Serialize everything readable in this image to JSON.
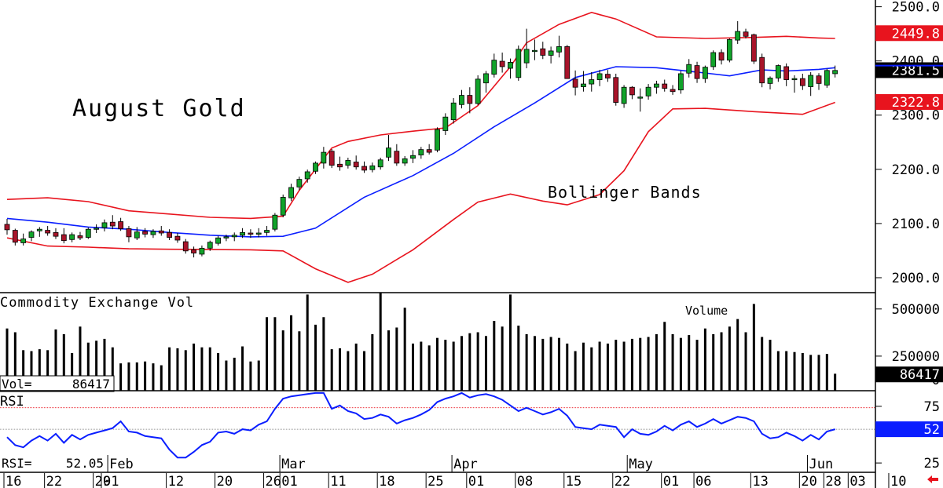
{
  "chart_data": {
    "type": "candlestick",
    "title": "August Gold",
    "annotation": "Bollinger Bands",
    "price_axis": {
      "ticks": [
        "2500.0",
        "2400.0",
        "2300.0",
        "2200.0",
        "2100.0",
        "2000.0"
      ],
      "tick_values": [
        2500,
        2400,
        2300,
        2200,
        2100,
        2000
      ],
      "range": [
        1971,
        2511
      ],
      "flags": [
        {
          "label": "2449.8",
          "value": 2449.8,
          "color": "#e8141e",
          "text_color": "#ffffff"
        },
        {
          "label": "2381.5",
          "value": 2381.5,
          "color": "#000000",
          "text_color": "#ffffff"
        },
        {
          "label": "2322.8",
          "value": 2322.8,
          "color": "#e8141e",
          "text_color": "#ffffff"
        }
      ]
    },
    "date_axis": {
      "day_labels": [
        "16",
        "22",
        "29",
        "01",
        "12",
        "20",
        "26",
        "01",
        "11",
        "18",
        "25",
        "01",
        "08",
        "15",
        "22",
        "01",
        "06",
        "13",
        "20",
        "28",
        "03",
        "10"
      ],
      "month_labels": [
        "Feb",
        "Mar",
        "Apr",
        "May",
        "Jun"
      ]
    },
    "candles": [
      [
        2097,
        2107,
        2078,
        2087
      ],
      [
        2086,
        2089,
        2058,
        2064
      ],
      [
        2063,
        2080,
        2058,
        2070
      ],
      [
        2073,
        2086,
        2066,
        2083
      ],
      [
        2085,
        2092,
        2074,
        2088
      ],
      [
        2086,
        2094,
        2076,
        2081
      ],
      [
        2082,
        2090,
        2070,
        2075
      ],
      [
        2078,
        2090,
        2062,
        2067
      ],
      [
        2069,
        2082,
        2064,
        2078
      ],
      [
        2076,
        2083,
        2068,
        2072
      ],
      [
        2073,
        2091,
        2070,
        2088
      ],
      [
        2089,
        2097,
        2081,
        2090
      ],
      [
        2091,
        2106,
        2084,
        2100
      ],
      [
        2101,
        2114,
        2088,
        2094
      ],
      [
        2102,
        2109,
        2085,
        2089
      ],
      [
        2089,
        2094,
        2064,
        2074
      ],
      [
        2072,
        2092,
        2068,
        2083
      ],
      [
        2084,
        2090,
        2073,
        2079
      ],
      [
        2078,
        2088,
        2072,
        2084
      ],
      [
        2085,
        2094,
        2076,
        2081
      ],
      [
        2082,
        2088,
        2068,
        2073
      ],
      [
        2075,
        2081,
        2063,
        2068
      ],
      [
        2065,
        2070,
        2043,
        2048
      ],
      [
        2050,
        2056,
        2036,
        2044
      ],
      [
        2042,
        2058,
        2038,
        2053
      ],
      [
        2053,
        2067,
        2048,
        2064
      ],
      [
        2062,
        2076,
        2058,
        2072
      ],
      [
        2072,
        2078,
        2066,
        2074
      ],
      [
        2074,
        2082,
        2066,
        2077
      ],
      [
        2077,
        2090,
        2072,
        2082
      ],
      [
        2081,
        2088,
        2072,
        2079
      ],
      [
        2079,
        2090,
        2073,
        2081
      ],
      [
        2082,
        2094,
        2076,
        2086
      ],
      [
        2088,
        2118,
        2084,
        2114
      ],
      [
        2114,
        2152,
        2110,
        2147
      ],
      [
        2146,
        2172,
        2140,
        2165
      ],
      [
        2166,
        2185,
        2160,
        2180
      ],
      [
        2181,
        2198,
        2174,
        2194
      ],
      [
        2195,
        2213,
        2190,
        2210
      ],
      [
        2210,
        2240,
        2200,
        2230
      ],
      [
        2232,
        2236,
        2201,
        2206
      ],
      [
        2208,
        2222,
        2196,
        2203
      ],
      [
        2206,
        2220,
        2200,
        2215
      ],
      [
        2212,
        2224,
        2198,
        2203
      ],
      [
        2204,
        2213,
        2192,
        2197
      ],
      [
        2198,
        2211,
        2193,
        2205
      ],
      [
        2203,
        2220,
        2198,
        2216
      ],
      [
        2221,
        2262,
        2214,
        2238
      ],
      [
        2232,
        2245,
        2205,
        2210
      ],
      [
        2210,
        2223,
        2205,
        2218
      ],
      [
        2219,
        2234,
        2210,
        2224
      ],
      [
        2225,
        2240,
        2218,
        2235
      ],
      [
        2235,
        2245,
        2226,
        2230
      ],
      [
        2234,
        2276,
        2230,
        2272
      ],
      [
        2270,
        2302,
        2262,
        2295
      ],
      [
        2290,
        2330,
        2283,
        2321
      ],
      [
        2318,
        2345,
        2311,
        2335
      ],
      [
        2335,
        2350,
        2302,
        2320
      ],
      [
        2320,
        2372,
        2317,
        2365
      ],
      [
        2358,
        2380,
        2340,
        2375
      ],
      [
        2374,
        2412,
        2368,
        2400
      ],
      [
        2398,
        2414,
        2377,
        2388
      ],
      [
        2385,
        2403,
        2366,
        2396
      ],
      [
        2368,
        2427,
        2362,
        2420
      ],
      [
        2395,
        2458,
        2385,
        2420
      ],
      [
        2418,
        2438,
        2400,
        2418
      ],
      [
        2421,
        2434,
        2402,
        2409
      ],
      [
        2409,
        2425,
        2394,
        2417
      ],
      [
        2415,
        2445,
        2405,
        2425
      ],
      [
        2425,
        2428,
        2366,
        2366
      ],
      [
        2365,
        2381,
        2335,
        2350
      ],
      [
        2351,
        2380,
        2342,
        2356
      ],
      [
        2356,
        2378,
        2342,
        2364
      ],
      [
        2364,
        2382,
        2352,
        2375
      ],
      [
        2374,
        2382,
        2360,
        2367
      ],
      [
        2368,
        2375,
        2316,
        2322
      ],
      [
        2320,
        2354,
        2312,
        2350
      ],
      [
        2350,
        2352,
        2328,
        2336
      ],
      [
        2330,
        2348,
        2305,
        2332
      ],
      [
        2334,
        2356,
        2327,
        2350
      ],
      [
        2350,
        2362,
        2338,
        2356
      ],
      [
        2356,
        2364,
        2342,
        2348
      ],
      [
        2346,
        2354,
        2336,
        2342
      ],
      [
        2345,
        2380,
        2338,
        2375
      ],
      [
        2376,
        2402,
        2368,
        2392
      ],
      [
        2390,
        2397,
        2358,
        2366
      ],
      [
        2366,
        2390,
        2358,
        2387
      ],
      [
        2388,
        2418,
        2382,
        2414
      ],
      [
        2414,
        2420,
        2392,
        2400
      ],
      [
        2400,
        2440,
        2396,
        2438
      ],
      [
        2437,
        2472,
        2430,
        2453
      ],
      [
        2452,
        2458,
        2440,
        2444
      ],
      [
        2447,
        2449,
        2393,
        2398
      ],
      [
        2405,
        2412,
        2350,
        2358
      ],
      [
        2357,
        2370,
        2346,
        2367
      ],
      [
        2367,
        2392,
        2360,
        2390
      ],
      [
        2388,
        2394,
        2352,
        2364
      ],
      [
        2365,
        2372,
        2340,
        2366
      ],
      [
        2366,
        2375,
        2345,
        2353
      ],
      [
        2351,
        2378,
        2334,
        2372
      ],
      [
        2371,
        2376,
        2345,
        2357
      ],
      [
        2354,
        2384,
        2349,
        2381
      ],
      [
        2375,
        2390,
        2368,
        2381
      ]
    ],
    "bollinger": {
      "color": "#e8141e",
      "upper": [
        [
          0,
          2143
        ],
        [
          5,
          2146
        ],
        [
          10,
          2139
        ],
        [
          15,
          2122
        ],
        [
          20,
          2116
        ],
        [
          25,
          2110
        ],
        [
          30,
          2108
        ],
        [
          34,
          2112
        ],
        [
          36,
          2160
        ],
        [
          40,
          2238
        ],
        [
          42,
          2250
        ],
        [
          46,
          2262
        ],
        [
          50,
          2269
        ],
        [
          54,
          2275
        ],
        [
          58,
          2316
        ],
        [
          62,
          2388
        ],
        [
          64,
          2432
        ],
        [
          68,
          2466
        ],
        [
          72,
          2488
        ],
        [
          75,
          2476
        ],
        [
          80,
          2443
        ],
        [
          86,
          2440
        ],
        [
          92,
          2442
        ],
        [
          96,
          2444
        ],
        [
          100,
          2441
        ],
        [
          102,
          2440
        ]
      ],
      "middle": [
        [
          0,
          2108
        ],
        [
          5,
          2101
        ],
        [
          10,
          2092
        ],
        [
          15,
          2088
        ],
        [
          20,
          2082
        ],
        [
          25,
          2077
        ],
        [
          30,
          2074
        ],
        [
          34,
          2075
        ],
        [
          38,
          2090
        ],
        [
          44,
          2147
        ],
        [
          50,
          2187
        ],
        [
          55,
          2228
        ],
        [
          60,
          2277
        ],
        [
          65,
          2321
        ],
        [
          70,
          2368
        ],
        [
          75,
          2388
        ],
        [
          80,
          2386
        ],
        [
          85,
          2378
        ],
        [
          89,
          2371
        ],
        [
          93,
          2382
        ],
        [
          96,
          2380
        ],
        [
          100,
          2383
        ],
        [
          102,
          2386
        ]
      ],
      "lower": [
        [
          0,
          2072
        ],
        [
          5,
          2057
        ],
        [
          10,
          2055
        ],
        [
          15,
          2052
        ],
        [
          20,
          2051
        ],
        [
          30,
          2050
        ],
        [
          34,
          2048
        ],
        [
          38,
          2015
        ],
        [
          42,
          1990
        ],
        [
          45,
          2005
        ],
        [
          50,
          2050
        ],
        [
          55,
          2106
        ],
        [
          58,
          2138
        ],
        [
          62,
          2153
        ],
        [
          66,
          2140
        ],
        [
          69,
          2133
        ],
        [
          73,
          2152
        ],
        [
          76,
          2196
        ],
        [
          79,
          2268
        ],
        [
          82,
          2310
        ],
        [
          86,
          2311
        ],
        [
          92,
          2305
        ],
        [
          98,
          2300
        ],
        [
          102,
          2322
        ]
      ]
    },
    "volume_panel": {
      "label": "Commodity Exchange Vol",
      "series_label": "Volume",
      "readout_label": "Vol=",
      "readout_value": "86417",
      "ticks": [
        "500000",
        "250000",
        "0"
      ],
      "tick_values": [
        500000,
        250000,
        0
      ],
      "range": [
        0,
        520000
      ],
      "flag": {
        "label": "86417",
        "value": 86417,
        "color": "#000000",
        "text_color": "#ffffff"
      },
      "values": [
        330000,
        310000,
        215000,
        210000,
        220000,
        215000,
        325000,
        300000,
        200000,
        340000,
        255000,
        265000,
        275000,
        230000,
        145000,
        150000,
        150000,
        155000,
        145000,
        135000,
        230000,
        225000,
        215000,
        250000,
        230000,
        230000,
        200000,
        160000,
        175000,
        235000,
        155000,
        160000,
        390000,
        390000,
        320000,
        400000,
        315000,
        510000,
        350000,
        390000,
        220000,
        225000,
        210000,
        250000,
        210000,
        300000,
        520000,
        320000,
        335000,
        440000,
        250000,
        260000,
        240000,
        280000,
        270000,
        260000,
        290000,
        305000,
        310000,
        290000,
        370000,
        340000,
        510000,
        345000,
        300000,
        290000,
        275000,
        285000,
        280000,
        250000,
        210000,
        255000,
        230000,
        260000,
        250000,
        270000,
        260000,
        275000,
        280000,
        285000,
        300000,
        365000,
        300000,
        280000,
        295000,
        270000,
        330000,
        300000,
        310000,
        340000,
        380000,
        310000,
        460000,
        285000,
        270000,
        210000,
        210000,
        205000,
        200000,
        190000,
        190000,
        195000,
        90000
      ]
    },
    "rsi_panel": {
      "label": "RSI",
      "readout_label": "RSI=",
      "readout_value": "52.05",
      "ticks": [
        "75",
        "25"
      ],
      "tick_values": [
        75,
        25
      ],
      "range": [
        14,
        86
      ],
      "guide_lines": [
        {
          "value": 71,
          "color": "#e8141e"
        },
        {
          "value": 52,
          "color": "#777777"
        }
      ],
      "flag": {
        "label": "52",
        "value": 52,
        "color": "#0a1eff",
        "text_color": "#ffffff"
      },
      "color": "#0a1eff",
      "values": [
        45,
        38,
        36,
        42,
        46,
        42,
        48,
        40,
        47,
        43,
        47,
        49,
        51,
        53,
        59,
        50,
        49,
        46,
        45,
        44,
        34,
        27,
        27,
        32,
        38,
        41,
        49,
        50,
        48,
        52,
        51,
        56,
        59,
        70,
        79,
        81,
        82,
        83,
        84,
        84,
        70,
        73,
        68,
        66,
        61,
        62,
        65,
        63,
        57,
        60,
        62,
        65,
        69,
        76,
        79,
        81,
        84,
        80,
        82,
        83,
        81,
        78,
        73,
        68,
        71,
        68,
        65,
        67,
        70,
        64,
        54,
        53,
        52,
        56,
        55,
        54,
        45,
        52,
        48,
        47,
        50,
        55,
        51,
        56,
        59,
        54,
        57,
        61,
        57,
        60,
        63,
        62,
        59,
        48,
        44,
        45,
        49,
        46,
        42,
        47,
        43,
        50,
        52
      ]
    },
    "colors": {
      "up": "#11a32a",
      "down": "#a8142a",
      "axis": "#000000"
    }
  }
}
